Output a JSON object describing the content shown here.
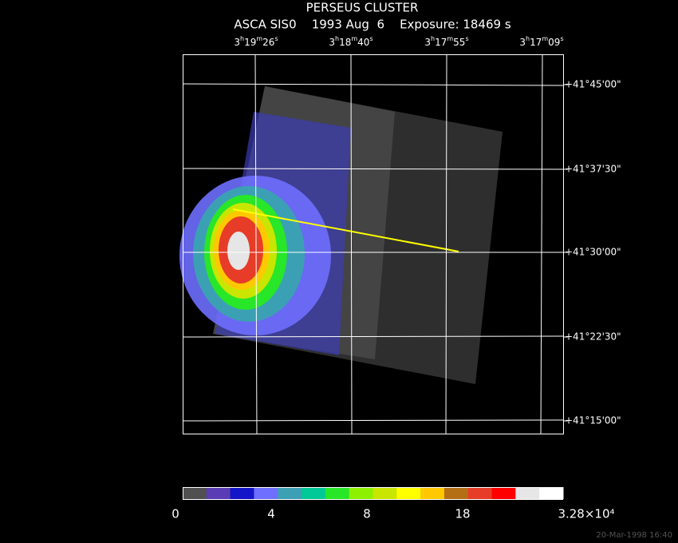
{
  "header": {
    "title": "PERSEUS CLUSTER",
    "subtitle": "ASCA SIS0    1993 Aug  6    Exposure: 18469 s"
  },
  "ra_labels": [
    "3h19m26s",
    "3h18m40s",
    "3h17m55s",
    "3h17m09s"
  ],
  "dec_labels": [
    "+41°45'00\"",
    "+41°37'30\"",
    "+41°30'00\"",
    "+41°22'30\"",
    "+41°15'00\""
  ],
  "colorbar": {
    "colors": [
      "#505050",
      "#5a3cb4",
      "#1414c8",
      "#6e6eff",
      "#3ca0b4",
      "#00c896",
      "#28e628",
      "#8cf000",
      "#c8e600",
      "#ffff00",
      "#ffc800",
      "#b46e14",
      "#e63c28",
      "#ff0000",
      "#e6e6e6",
      "#ffffff"
    ],
    "labels": [
      "0",
      "4",
      "8",
      "18",
      "3.28×10⁴"
    ]
  },
  "timestamp": "20-Mar-1998 16:40"
}
